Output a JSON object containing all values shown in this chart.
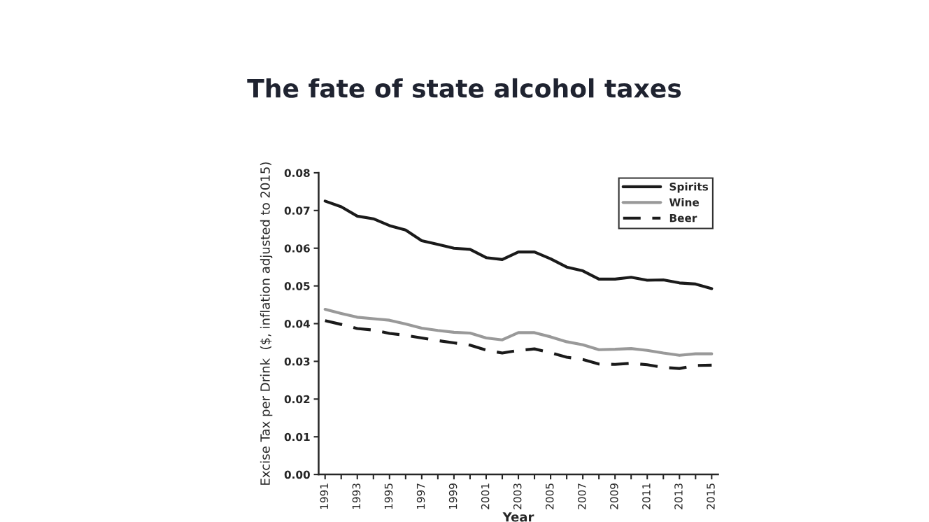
{
  "chart_data": {
    "type": "line",
    "title": "The fate of state alcohol taxes",
    "xlabel": "Year",
    "ylabel": "Excise Tax per Drink  ($, inflation adjusted to 2015)",
    "x": [
      1991,
      1992,
      1993,
      1994,
      1995,
      1996,
      1997,
      1998,
      1999,
      2000,
      2001,
      2002,
      2003,
      2004,
      2005,
      2006,
      2007,
      2008,
      2009,
      2010,
      2011,
      2012,
      2013,
      2014,
      2015
    ],
    "series": [
      {
        "name": "Spirits",
        "color": "#1a1a1a",
        "line_style": "solid",
        "values": [
          0.0725,
          0.071,
          0.0685,
          0.0678,
          0.066,
          0.0648,
          0.062,
          0.061,
          0.06,
          0.0597,
          0.0575,
          0.057,
          0.059,
          0.059,
          0.0572,
          0.055,
          0.054,
          0.0518,
          0.0518,
          0.0523,
          0.0515,
          0.0516,
          0.0508,
          0.0505,
          0.0493
        ]
      },
      {
        "name": "Wine",
        "color": "#999999",
        "line_style": "solid",
        "values": [
          0.0438,
          0.0427,
          0.0417,
          0.0413,
          0.0409,
          0.0399,
          0.0388,
          0.0382,
          0.0377,
          0.0375,
          0.0362,
          0.0357,
          0.0376,
          0.0376,
          0.0365,
          0.0352,
          0.0344,
          0.0331,
          0.0332,
          0.0334,
          0.0329,
          0.0322,
          0.0316,
          0.032,
          0.032
        ]
      },
      {
        "name": "Beer",
        "color": "#1a1a1a",
        "line_style": "dashed",
        "values": [
          0.0408,
          0.0398,
          0.0387,
          0.0383,
          0.0374,
          0.0369,
          0.0362,
          0.0355,
          0.0349,
          0.0343,
          0.033,
          0.0322,
          0.0329,
          0.0333,
          0.0323,
          0.0311,
          0.0305,
          0.0293,
          0.0292,
          0.0295,
          0.0291,
          0.0284,
          0.0281,
          0.0289,
          0.029
        ]
      }
    ],
    "xlim": [
      1990.6,
      2015.4
    ],
    "xticks": [
      1991,
      {
        "value": 1992,
        "label": null
      },
      1993,
      {
        "value": 1994,
        "label": null
      },
      1995,
      {
        "value": 1996,
        "label": null
      },
      1997,
      {
        "value": 1998,
        "label": null
      },
      1999,
      {
        "value": 2000,
        "label": null
      },
      2001,
      {
        "value": 2002,
        "label": null
      },
      2003,
      {
        "value": 2004,
        "label": null
      },
      2005,
      {
        "value": 2006,
        "label": null
      },
      2007,
      {
        "value": 2008,
        "label": null
      },
      2009,
      {
        "value": 2010,
        "label": null
      },
      2011,
      {
        "value": 2012,
        "label": null
      },
      2013,
      {
        "value": 2014,
        "label": null
      },
      2015
    ],
    "ylim": [
      0,
      0.08
    ],
    "yticks": [
      {
        "value": 0,
        "label": "0.00"
      },
      {
        "value": 0.01,
        "label": "0.01"
      },
      {
        "value": 0.02,
        "label": "0.02"
      },
      {
        "value": 0.03,
        "label": "0.03"
      },
      {
        "value": 0.04,
        "label": "0.04"
      },
      {
        "value": 0.05,
        "label": "0.05"
      },
      {
        "value": 0.06,
        "label": "0.06"
      },
      {
        "value": 0.07,
        "label": "0.07"
      },
      {
        "value": 0.08,
        "label": "0.08"
      }
    ],
    "grid": false,
    "legend": "top right",
    "marker": "none"
  }
}
